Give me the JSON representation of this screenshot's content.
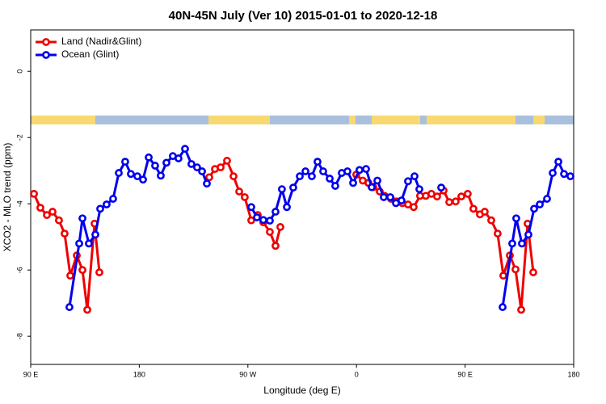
{
  "chart_data": {
    "type": "line",
    "title": "40N-45N July (Ver 10)   2015-01-01 to 2020-12-18",
    "x_label": "Longitude (deg E)",
    "y_label": "XCO2 - MLO trend (ppm)",
    "xlim": [
      90,
      540
    ],
    "xticks": [
      {
        "value": 90,
        "label": "90 E"
      },
      {
        "value": 180,
        "label": "180"
      },
      {
        "value": 270,
        "label": "90 W"
      },
      {
        "value": 360,
        "label": "0"
      },
      {
        "value": 450,
        "label": "90 E"
      },
      {
        "value": 540,
        "label": "180"
      }
    ],
    "ylim": [
      -8.85,
      1.25
    ],
    "yticks": [
      -8,
      -6,
      -4,
      -2,
      0
    ],
    "legend": "top-left",
    "series": [
      {
        "name": "Land (Nadir&Glint)",
        "color": "#ee0000",
        "x": [
          92.7,
          98.0,
          103.4,
          108.1,
          113.4,
          118.1,
          122.8,
          128.2,
          132.9,
          136.9,
          142.9,
          146.9,
          200,
          238.0,
          242.7,
          247.4,
          252.7,
          258.1,
          262.8,
          267.4,
          272.8,
          278.2,
          282.8,
          288.2,
          292.9,
          296.9,
          330,
          359.8,
          365.2,
          369.9,
          373.9,
          379.3,
          383.3,
          388.6,
          393.3,
          398.0,
          402.7,
          407.4,
          412.7,
          417.4,
          422.1,
          426.8,
          432.2,
          436.9,
          442.2,
          446.9,
          452.2,
          456.9,
          462.3,
          466.3,
          471.7,
          477.0,
          481.7,
          487.1,
          491.8,
          496.5,
          501.8,
          506.5
        ],
        "values": [
          -3.7,
          -4.12,
          -4.34,
          -4.24,
          -4.5,
          -4.9,
          -6.17,
          -5.56,
          -6.0,
          -7.2,
          -4.6,
          -6.07,
          null,
          -3.2,
          -2.95,
          -2.9,
          -2.7,
          -3.17,
          -3.63,
          -3.8,
          -4.5,
          -4.34,
          -4.56,
          -4.85,
          -5.27,
          -4.7,
          null,
          -3.12,
          -3.3,
          -3.37,
          -3.5,
          -3.63,
          -3.76,
          -3.85,
          -3.93,
          -3.98,
          -4.02,
          -4.1,
          -3.76,
          -3.76,
          -3.7,
          -3.78,
          -3.6,
          -3.95,
          -3.93,
          -3.78,
          -3.7,
          -4.15,
          -4.32,
          -4.24,
          -4.5,
          -4.9,
          -6.17,
          -5.56,
          -5.98,
          -7.2,
          -4.6,
          -6.07
        ]
      },
      {
        "name": "Ocean (Glint)",
        "color": "#0000ee",
        "x": [
          122.1,
          130.2,
          132.9,
          138.2,
          143.6,
          147.6,
          152.9,
          158.3,
          163.0,
          168.3,
          173.0,
          178.4,
          183.1,
          187.8,
          193.1,
          197.8,
          202.5,
          207.8,
          212.5,
          217.9,
          223.2,
          227.9,
          232.0,
          236.0,
          255,
          272.8,
          277.5,
          282.8,
          288.2,
          292.9,
          298.2,
          302.3,
          307.6,
          313.0,
          317.7,
          323.0,
          327.7,
          332.4,
          337.8,
          342.4,
          347.8,
          352.5,
          357.2,
          362.5,
          367.9,
          372.6,
          377.3,
          382.6,
          388.0,
          392.7,
          397.3,
          402.7,
          408.1,
          412.1,
          420,
          430.2,
          455,
          481.1,
          489.1,
          492.4,
          497.1,
          502.5,
          507.2,
          511.9,
          517.9,
          522.6,
          527.3,
          532.0,
          537.3
        ],
        "values": [
          -7.12,
          -5.2,
          -4.44,
          -5.2,
          -4.93,
          -4.15,
          -4.02,
          -3.85,
          -3.07,
          -2.73,
          -3.1,
          -3.17,
          -3.27,
          -2.6,
          -2.85,
          -3.15,
          -2.76,
          -2.56,
          -2.63,
          -2.34,
          -2.8,
          -2.9,
          -3.02,
          -3.39,
          null,
          -4.1,
          -4.41,
          -4.49,
          -4.51,
          -4.24,
          -3.56,
          -4.1,
          -3.51,
          -3.17,
          -3.02,
          -3.17,
          -2.73,
          -3.02,
          -3.24,
          -3.46,
          -3.07,
          -3.02,
          -3.37,
          -2.98,
          -2.95,
          -3.5,
          -3.3,
          -3.8,
          -3.8,
          -3.98,
          -3.9,
          -3.32,
          -3.17,
          -3.56,
          null,
          -3.51,
          null,
          -7.12,
          -5.2,
          -4.44,
          -5.2,
          -4.93,
          -4.15,
          -4.02,
          -3.85,
          -3.07,
          -2.73,
          -3.1,
          -3.17
        ]
      }
    ]
  }
}
